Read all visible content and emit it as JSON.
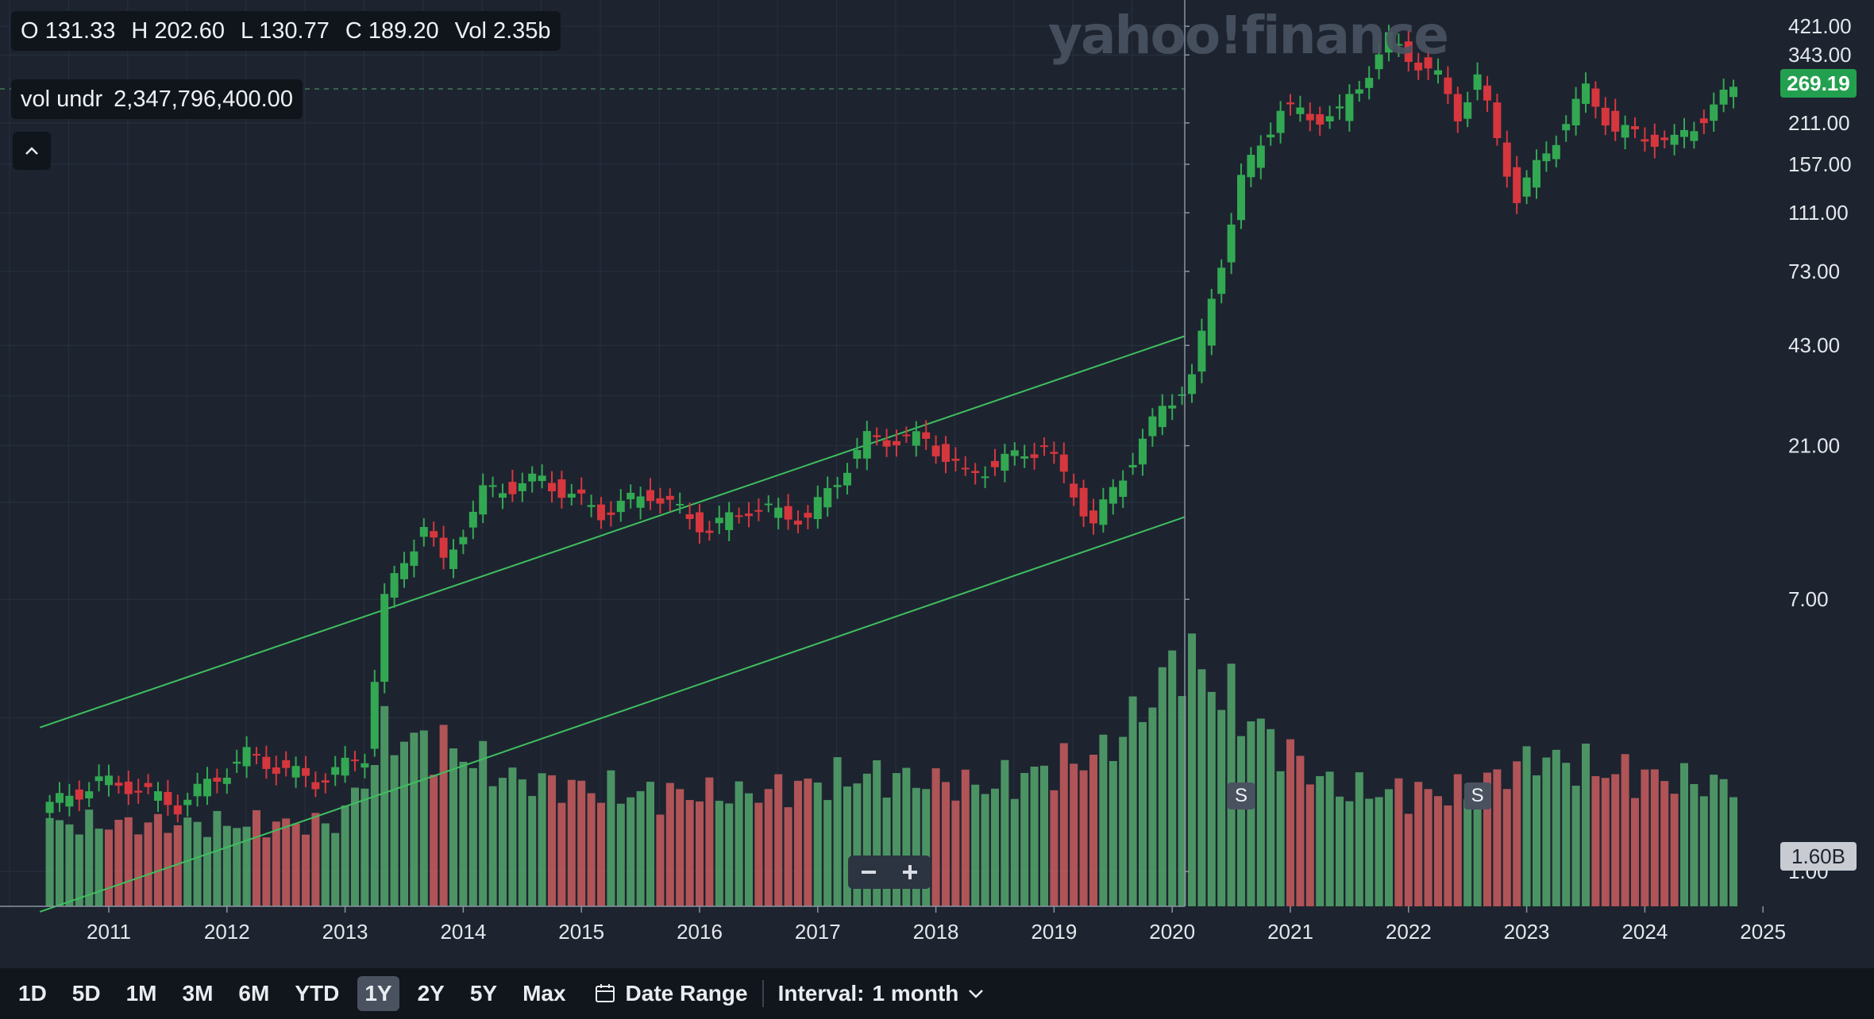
{
  "watermark": "yahoo!finance",
  "ohlc": {
    "o_label": "O",
    "o_value": "131.33",
    "h_label": "H",
    "h_value": "202.60",
    "l_label": "L",
    "l_value": "130.77",
    "c_label": "C",
    "c_value": "189.20",
    "vol_label": "Vol",
    "vol_value": "2.35b"
  },
  "vol_indicator": {
    "label": "vol undr",
    "value": "2,347,796,400.00"
  },
  "current_price_label": "269.19",
  "volume_tag_label": "1.60B",
  "split_marker_label": "S",
  "colors": {
    "background": "#1d2430",
    "up": "#33a852",
    "down": "#d6363d",
    "vol_up": "#4f9a67",
    "vol_down": "#b8575a",
    "trendline": "#3fbf5f"
  },
  "toolbar": {
    "ranges": [
      "1D",
      "5D",
      "1M",
      "3M",
      "6M",
      "YTD",
      "1Y",
      "2Y",
      "5Y",
      "Max"
    ],
    "active_range": "1Y",
    "date_range_label": "Date Range",
    "interval_label": "Interval:",
    "interval_value": "1 month"
  },
  "chart_data": {
    "type": "candlestick",
    "scale": "log",
    "y_ticks": [
      "421.00",
      "343.00",
      "211.00",
      "157.00",
      "111.00",
      "73.00",
      "43.00",
      "21.00",
      "7.00",
      "1.00"
    ],
    "x_ticks": [
      "2011",
      "2012",
      "2013",
      "2014",
      "2015",
      "2016",
      "2017",
      "2018",
      "2019",
      "2020",
      "2021",
      "2022",
      "2023",
      "2024",
      "2025"
    ],
    "anchors": [
      [
        "2010-07",
        1.6
      ],
      [
        "2010-12",
        1.9
      ],
      [
        "2011-03",
        1.85
      ],
      [
        "2011-08",
        1.6
      ],
      [
        "2012-03",
        2.3
      ],
      [
        "2012-10",
        1.9
      ],
      [
        "2013-03",
        2.3
      ],
      [
        "2013-05",
        7.0
      ],
      [
        "2013-09",
        12.0
      ],
      [
        "2013-11",
        9.0
      ],
      [
        "2014-03",
        15.0
      ],
      [
        "2014-09",
        16.5
      ],
      [
        "2015-03",
        13.0
      ],
      [
        "2015-08",
        15.0
      ],
      [
        "2016-02",
        11.5
      ],
      [
        "2016-06",
        13.5
      ],
      [
        "2016-12",
        12.5
      ],
      [
        "2017-06",
        22.0
      ],
      [
        "2017-12",
        22.0
      ],
      [
        "2018-04",
        17.0
      ],
      [
        "2018-12",
        21.0
      ],
      [
        "2019-05",
        12.0
      ],
      [
        "2019-12",
        27.5
      ],
      [
        "2020-03",
        34.0
      ],
      [
        "2020-08",
        140.0
      ],
      [
        "2020-12",
        235.0
      ],
      [
        "2021-03",
        220.0
      ],
      [
        "2021-06",
        225.0
      ],
      [
        "2021-11",
        381.0
      ],
      [
        "2022-04",
        290.0
      ],
      [
        "2022-06",
        225.0
      ],
      [
        "2022-08",
        290.0
      ],
      [
        "2022-12",
        123.0
      ],
      [
        "2023-07",
        267.0
      ],
      [
        "2023-10",
        200.0
      ],
      [
        "2024-04",
        183.0
      ],
      [
        "2024-10",
        269.19
      ]
    ],
    "volume_anchors": [
      [
        "2010-07",
        1.1
      ],
      [
        "2012-12",
        1.1
      ],
      [
        "2013-05",
        2.3
      ],
      [
        "2013-12",
        2.1
      ],
      [
        "2014-06",
        1.7
      ],
      [
        "2015-06",
        1.5
      ],
      [
        "2016-06",
        1.5
      ],
      [
        "2017-06",
        1.75
      ],
      [
        "2018-06",
        1.6
      ],
      [
        "2019-06",
        2.05
      ],
      [
        "2020-02",
        3.4
      ],
      [
        "2020-09",
        2.5
      ],
      [
        "2021-06",
        1.55
      ],
      [
        "2022-06",
        1.5
      ],
      [
        "2023-02",
        2.0
      ],
      [
        "2023-09",
        1.8
      ],
      [
        "2024-10",
        1.6
      ]
    ],
    "volume_unit": "B",
    "trendlines": [
      {
        "from": [
          "2010-06",
          2.8
        ],
        "to": [
          "2024-11",
          180.0
        ]
      },
      {
        "from": [
          "2010-06",
          0.75
        ],
        "to": [
          "2024-11",
          50.0
        ]
      }
    ],
    "reference_line": 269.19,
    "split_markers": [
      "2020-08",
      "2022-08"
    ]
  }
}
